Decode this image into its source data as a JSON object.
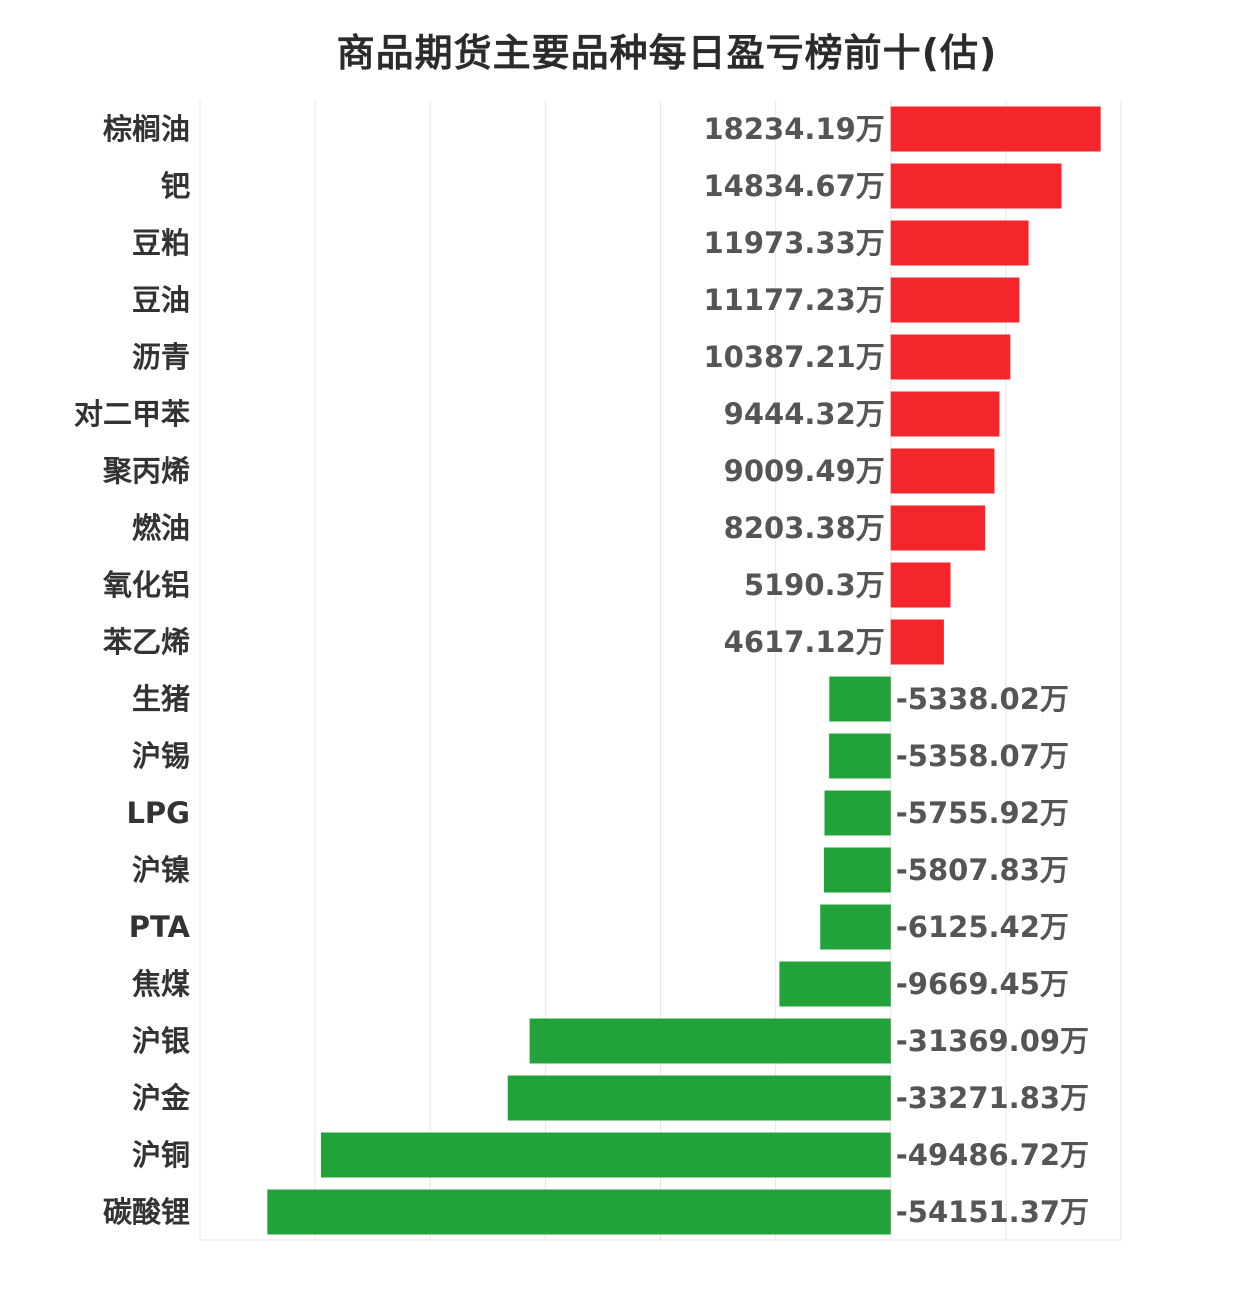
{
  "chart_data": {
    "type": "bar",
    "orientation": "horizontal",
    "title": "商品期货主要品种每日盈亏榜前十(估)",
    "unit_suffix": "万",
    "xlabel": "",
    "ylabel": "",
    "xlim": [
      -60000,
      20000
    ],
    "grid": true,
    "legend": "none",
    "colors": {
      "positive": "#f5262b",
      "negative": "#22a33a",
      "label": "#555555",
      "category": "#333333",
      "grid": "#e6e6e6"
    },
    "categories": [
      "棕榈油",
      "钯",
      "豆粕",
      "豆油",
      "沥青",
      "对二甲苯",
      "聚丙烯",
      "燃油",
      "氧化铝",
      "苯乙烯",
      "生猪",
      "沪锡",
      "LPG",
      "沪镍",
      "PTA",
      "焦煤",
      "沪银",
      "沪金",
      "沪铜",
      "碳酸锂"
    ],
    "values": [
      18234.19,
      14834.67,
      11973.33,
      11177.23,
      10387.21,
      9444.32,
      9009.49,
      8203.38,
      5190.3,
      4617.12,
      -5338.02,
      -5358.07,
      -5755.92,
      -5807.83,
      -6125.42,
      -9669.45,
      -31369.09,
      -33271.83,
      -49486.72,
      -54151.37
    ],
    "value_labels": [
      "18234.19万",
      "14834.67万",
      "11973.33万",
      "11177.23万",
      "10387.21万",
      "9444.32万",
      "9009.49万",
      "8203.38万",
      "5190.3万",
      "4617.12万",
      "-5338.02万",
      "-5358.07万",
      "-5755.92万",
      "-5807.83万",
      "-6125.42万",
      "-9669.45万",
      "-31369.09万",
      "-33271.83万",
      "-49486.72万",
      "-54151.37万"
    ]
  }
}
